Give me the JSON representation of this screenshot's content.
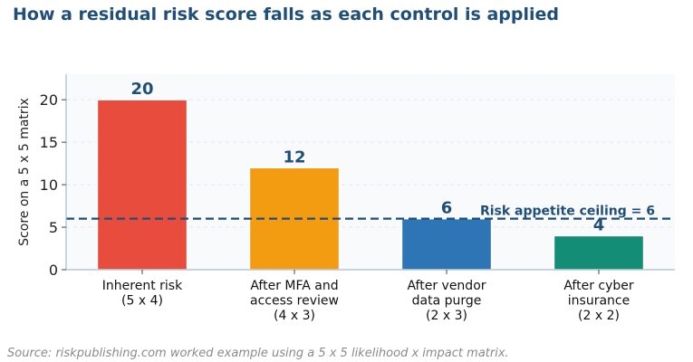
{
  "title": "How a residual risk score falls as each control is applied",
  "source": "Source: riskpublishing.com worked example using a 5 x 5 likelihood x impact matrix.",
  "chart_data": {
    "type": "bar",
    "categories": [
      [
        "Inherent risk",
        "(5 x 4)"
      ],
      [
        "After MFA and",
        "access review",
        "(4 x 3)"
      ],
      [
        "After vendor",
        "data purge",
        "(2 x 3)"
      ],
      [
        "After cyber",
        "insurance",
        "(2 x 2)"
      ]
    ],
    "values": [
      20,
      12,
      6,
      4
    ],
    "data_labels": [
      "20",
      "12",
      "6",
      "4"
    ],
    "colors": [
      "#e74c3c",
      "#f39c12",
      "#2e75b6",
      "#138d75"
    ],
    "ylabel": "Score on a 5 x 5 matrix",
    "ylim": [
      0,
      23
    ],
    "yticks": [
      0,
      5,
      10,
      15,
      20
    ],
    "grid": true,
    "reference_line": {
      "value": 6,
      "label": "Risk appetite ceiling = 6",
      "color": "#1f4e79",
      "style": "dashed"
    }
  }
}
